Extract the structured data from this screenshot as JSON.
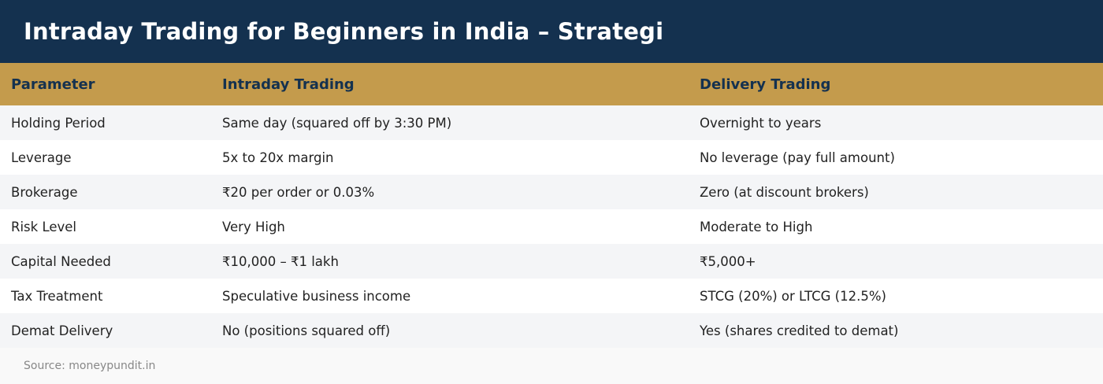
{
  "title": "Intraday Trading for Beginners in India – Strategi",
  "table": {
    "headers": [
      "Parameter",
      "Intraday Trading",
      "Delivery Trading"
    ],
    "rows": [
      [
        "Holding Period",
        "Same day (squared off by 3:30 PM)",
        "Overnight to years"
      ],
      [
        "Leverage",
        "5x to 20x margin",
        "No leverage (pay full amount)"
      ],
      [
        "Brokerage",
        "₹20 per order or 0.03%",
        "Zero (at discount brokers)"
      ],
      [
        "Risk Level",
        "Very High",
        "Moderate to High"
      ],
      [
        "Capital Needed",
        "₹10,000 – ₹1 lakh",
        "₹5,000+"
      ],
      [
        "Tax Treatment",
        "Speculative business income",
        "STCG (20%) or LTCG (12.5%)"
      ],
      [
        "Demat Delivery",
        "No (positions squared off)",
        "Yes (shares credited to demat)"
      ]
    ]
  },
  "source": "Source: moneypundit.in",
  "colors": {
    "title_bg": "#14314f",
    "header_bg": "#c49b4c",
    "row_alt": "#f4f5f7"
  }
}
